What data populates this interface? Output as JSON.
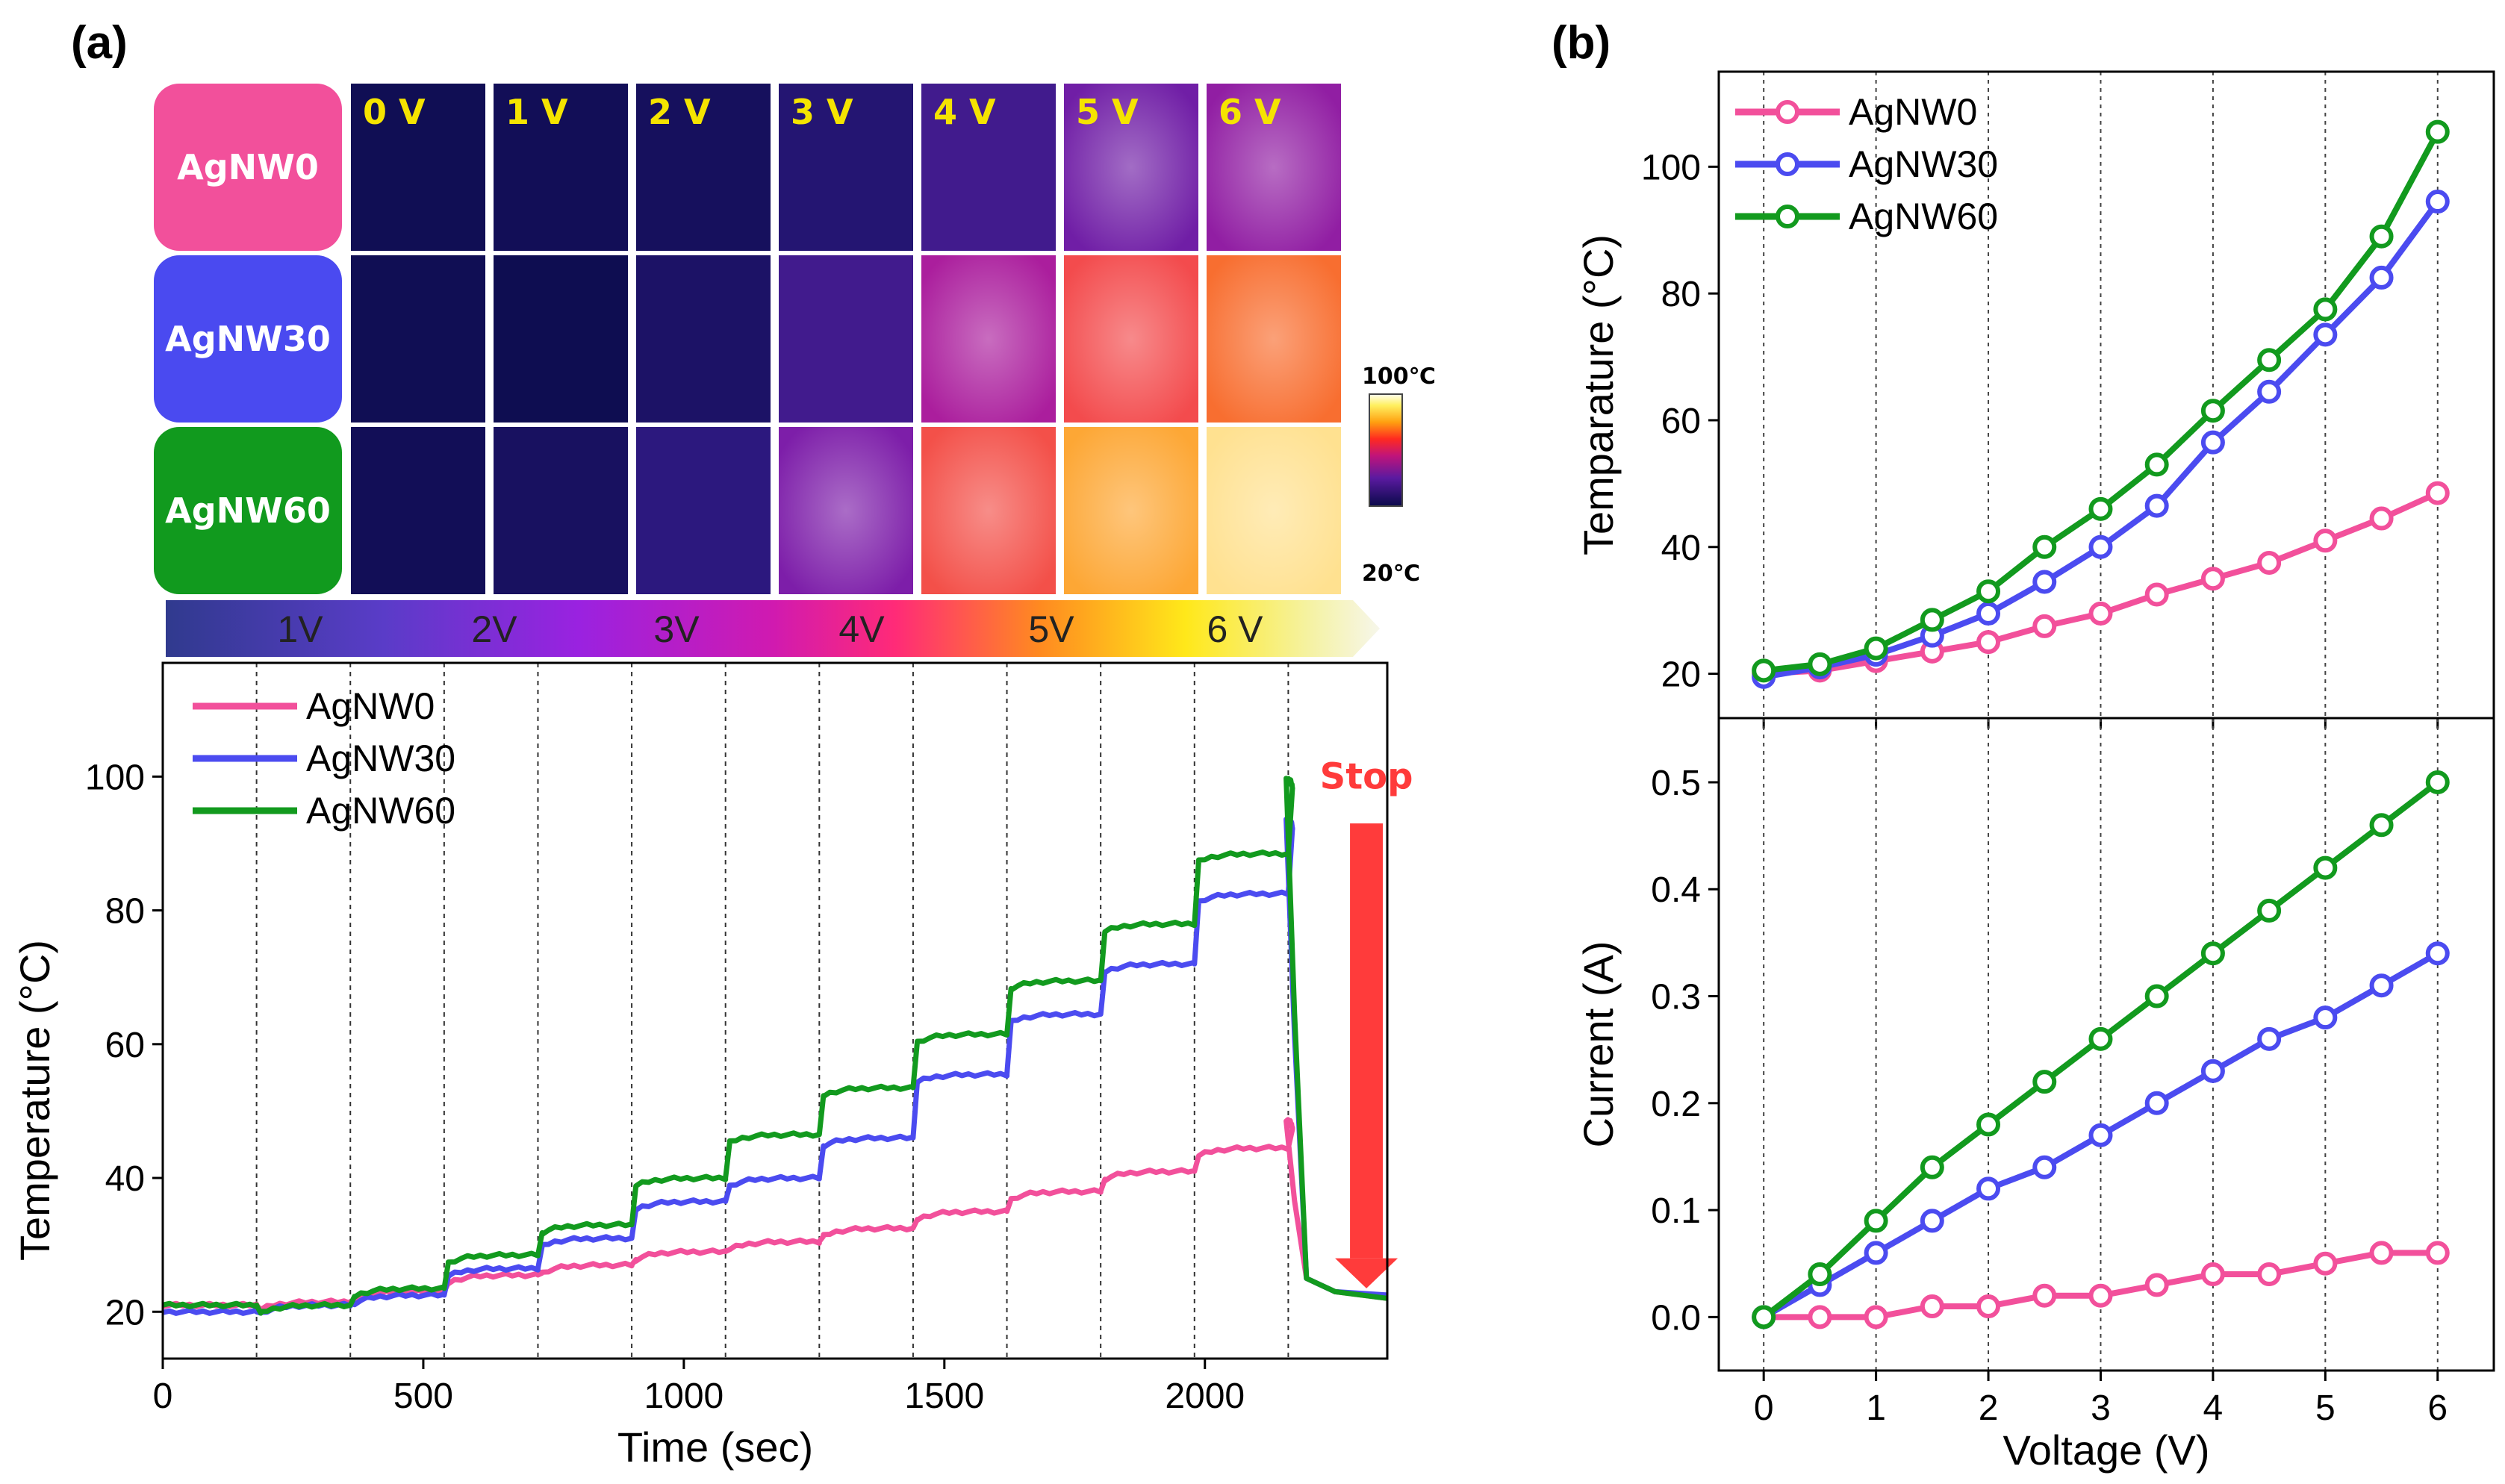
{
  "panel_a_label": "(a)",
  "panel_b_label": "(b)",
  "thermal": {
    "voltages": [
      "0 V",
      "1 V",
      "2 V",
      "3 V",
      "4 V",
      "5 V",
      "6 V"
    ],
    "samples": [
      {
        "name": "AgNW0",
        "color": "#f2509b",
        "intensity": [
          0.02,
          0.03,
          0.05,
          0.12,
          0.22,
          0.33,
          0.4
        ]
      },
      {
        "name": "AgNW30",
        "color": "#4a4af0",
        "intensity": [
          0.02,
          0.01,
          0.08,
          0.22,
          0.45,
          0.65,
          0.72
        ]
      },
      {
        "name": "AgNW60",
        "color": "#119a1e",
        "intensity": [
          0.03,
          0.06,
          0.16,
          0.36,
          0.66,
          0.82,
          0.95
        ]
      }
    ],
    "colorbar": {
      "max": "100℃",
      "min": "20℃"
    }
  },
  "voltage_bar": {
    "labels": [
      "1V",
      "2V",
      "3V",
      "4V",
      "5V",
      "6 V"
    ]
  },
  "stop_label": "Stop",
  "chart_data": [
    {
      "id": "time_series",
      "type": "line",
      "title": "",
      "xlabel": "Time (sec)",
      "ylabel": "Temperature (°C)",
      "xlim": [
        0,
        2350
      ],
      "ylim": [
        13,
        117
      ],
      "xticks": [
        0,
        500,
        1000,
        1500,
        2000
      ],
      "yticks": [
        20,
        40,
        60,
        80,
        100
      ],
      "step_boundaries": [
        180,
        360,
        540,
        720,
        900,
        1080,
        1260,
        1440,
        1620,
        1800,
        1980,
        2160
      ],
      "stop_time": 2160,
      "final_temperature": 22,
      "legend_position": "top-left",
      "series": [
        {
          "name": "AgNW0",
          "color": "#f2509b",
          "levels": [
            21,
            21.5,
            23,
            25.5,
            27,
            29,
            30.5,
            32.5,
            35,
            38,
            41,
            44.5,
            48.5
          ]
        },
        {
          "name": "AgNW30",
          "color": "#4b4bf0",
          "levels": [
            20,
            21,
            22.5,
            26.5,
            31,
            36.5,
            40,
            46,
            55.5,
            64.5,
            72,
            82.5,
            93.5
          ]
        },
        {
          "name": "AgNW60",
          "color": "#129a1e",
          "levels": [
            21,
            21,
            23.5,
            28.5,
            33,
            40,
            46.5,
            53.5,
            61.5,
            69.5,
            78,
            88.5,
            99.5
          ]
        }
      ]
    },
    {
      "id": "temp_vs_voltage",
      "type": "line",
      "xlabel": "Voltage (V)",
      "ylabel": "Temparature (°C)",
      "xlim": [
        -0.4,
        6.5
      ],
      "ylim": [
        13,
        115
      ],
      "xticks": [
        0,
        1,
        2,
        3,
        4,
        5,
        6
      ],
      "yticks": [
        20,
        40,
        60,
        80,
        100
      ],
      "legend_position": "top-left",
      "x": [
        0,
        0.5,
        1,
        1.5,
        2,
        2.5,
        3,
        3.5,
        4,
        4.5,
        5,
        5.5,
        6
      ],
      "series": [
        {
          "name": "AgNW0",
          "color": "#f2509b",
          "values": [
            20,
            20.5,
            22,
            23.5,
            25,
            27.5,
            29.5,
            32.5,
            35,
            37.5,
            41,
            44.5,
            48.5
          ]
        },
        {
          "name": "AgNW30",
          "color": "#4b4bf0",
          "values": [
            19.5,
            21,
            23,
            26,
            29.5,
            34.5,
            40,
            46.5,
            56.5,
            64.5,
            73.5,
            82.5,
            94.5
          ]
        },
        {
          "name": "AgNW60",
          "color": "#129a1e",
          "values": [
            20.5,
            21.5,
            24,
            28.5,
            33,
            40,
            46,
            53,
            61.5,
            69.5,
            77.5,
            89,
            105.5
          ]
        }
      ]
    },
    {
      "id": "current_vs_voltage",
      "type": "line",
      "xlabel": "Voltage (V)",
      "ylabel": "Current (A)",
      "xlim": [
        -0.4,
        6.5
      ],
      "ylim": [
        -0.05,
        0.56
      ],
      "xticks": [
        0,
        1,
        2,
        3,
        4,
        5,
        6
      ],
      "yticks": [
        0.0,
        0.1,
        0.2,
        0.3,
        0.4,
        0.5
      ],
      "ytick_labels": [
        "0.0",
        "0.1",
        "0.2",
        "0.3",
        "0.4",
        "0.5"
      ],
      "x": [
        0,
        0.5,
        1,
        1.5,
        2,
        2.5,
        3,
        3.5,
        4,
        4.5,
        5,
        5.5,
        6
      ],
      "series": [
        {
          "name": "AgNW0",
          "color": "#f2509b",
          "values": [
            0,
            0,
            0,
            0.01,
            0.01,
            0.02,
            0.02,
            0.03,
            0.04,
            0.04,
            0.05,
            0.06,
            0.06
          ]
        },
        {
          "name": "AgNW30",
          "color": "#4b4bf0",
          "values": [
            0,
            0.03,
            0.06,
            0.09,
            0.12,
            0.14,
            0.17,
            0.2,
            0.23,
            0.26,
            0.28,
            0.31,
            0.34
          ]
        },
        {
          "name": "AgNW60",
          "color": "#129a1e",
          "values": [
            0,
            0.04,
            0.09,
            0.14,
            0.18,
            0.22,
            0.26,
            0.3,
            0.34,
            0.38,
            0.42,
            0.46,
            0.5
          ]
        }
      ]
    }
  ]
}
